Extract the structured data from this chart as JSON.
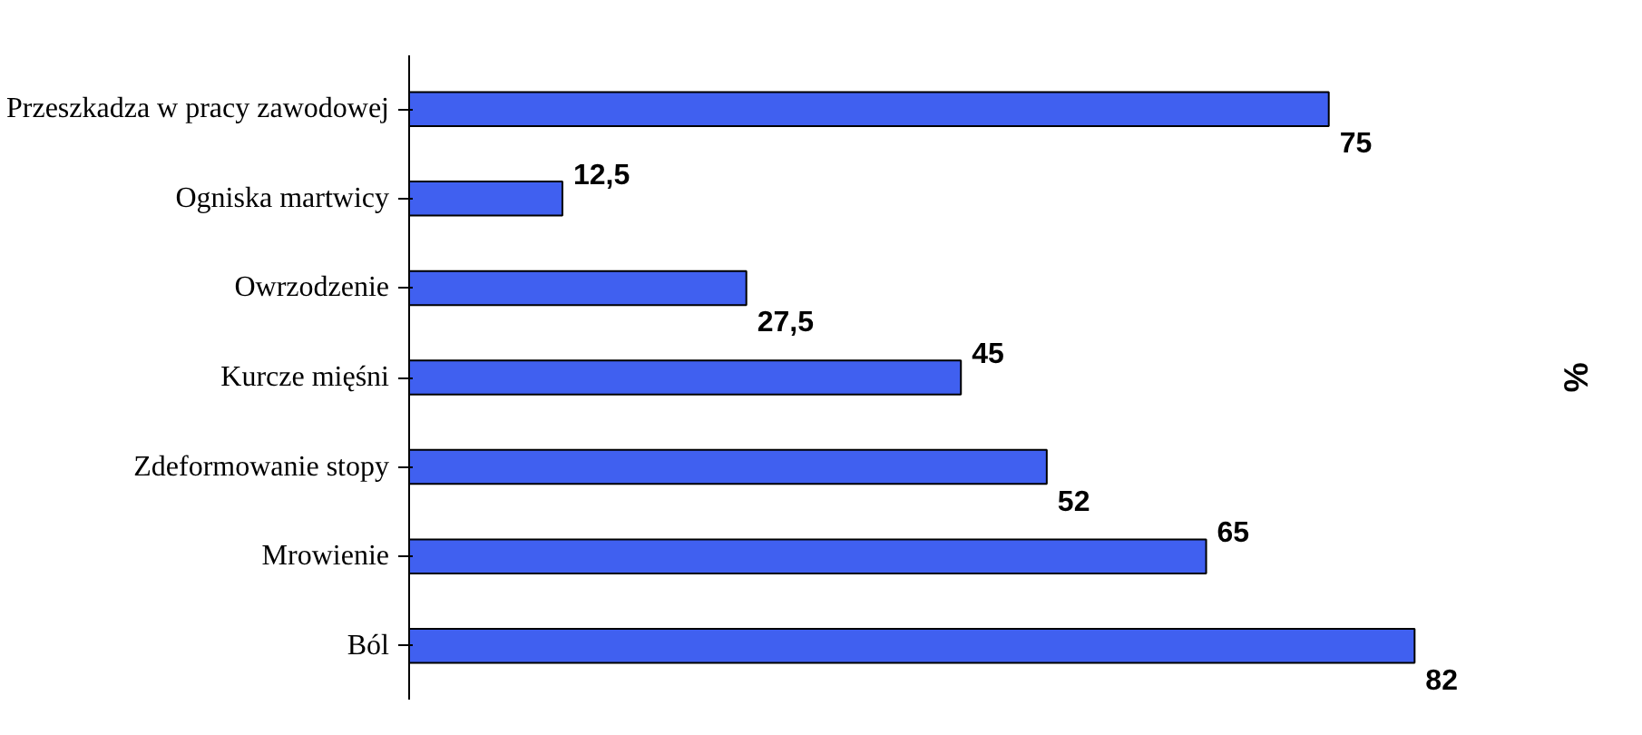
{
  "chart_data": {
    "type": "bar",
    "orientation": "horizontal",
    "y2label": "%",
    "categories": [
      "Przeszkadza w pracy zawodowej",
      "Ogniska martwicy",
      "Owrzodzenie",
      "Kurcze mięśni",
      "Zdeformowanie stopy",
      "Mrowienie",
      "Ból"
    ],
    "values": [
      75,
      12.5,
      27.5,
      45,
      52,
      65,
      82
    ],
    "value_labels": [
      "75",
      "12,5",
      "27,5",
      "45",
      "52",
      "65",
      "82"
    ],
    "color": "#4060f0",
    "grid": false
  }
}
